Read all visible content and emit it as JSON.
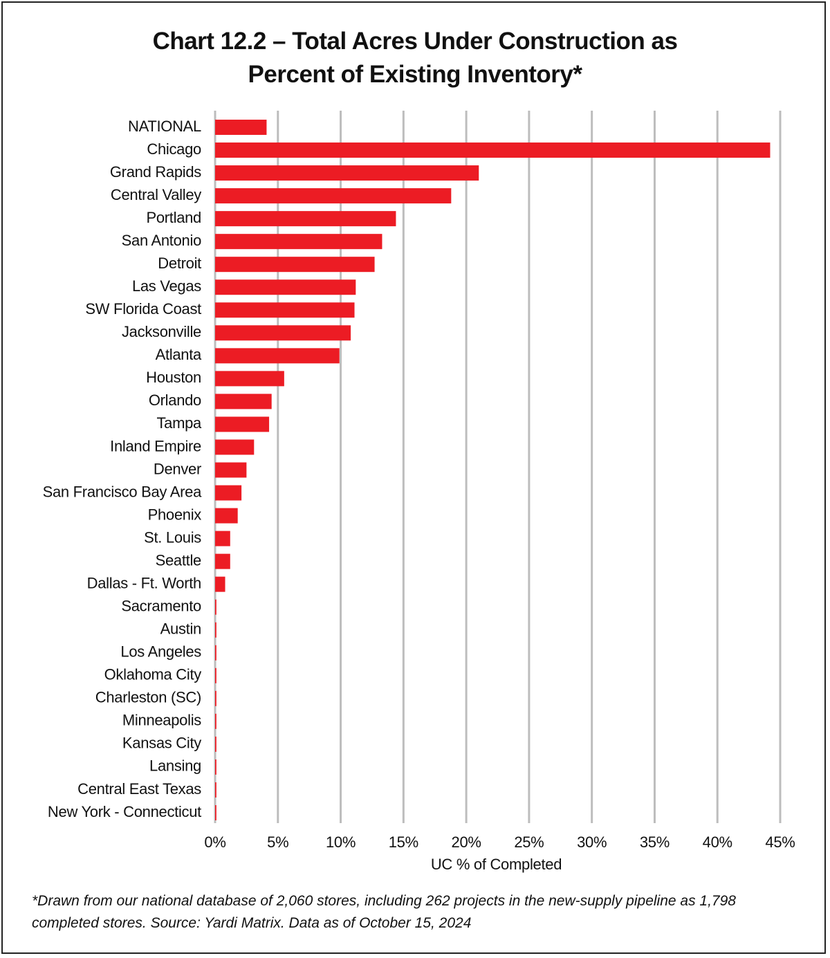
{
  "chart_data": {
    "type": "hbar",
    "title": "Chart 12.2 – Total Acres Under Construction as Percent of Existing Inventory*",
    "categories": [
      "NATIONAL",
      "Chicago",
      "Grand Rapids",
      "Central Valley",
      "Portland",
      "San Antonio",
      "Detroit",
      "Las Vegas",
      "SW Florida Coast",
      "Jacksonville",
      "Atlanta",
      "Houston",
      "Orlando",
      "Tampa",
      "Inland Empire",
      "Denver",
      "San Francisco Bay Area",
      "Phoenix",
      "St. Louis",
      "Seattle",
      "Dallas - Ft. Worth",
      "Sacramento",
      "Austin",
      "Los Angeles",
      "Oklahoma City",
      "Charleston (SC)",
      "Minneapolis",
      "Kansas City",
      "Lansing",
      "Central East Texas",
      "New York - Connecticut"
    ],
    "values": [
      4.1,
      44.2,
      21.0,
      18.8,
      14.4,
      13.3,
      12.7,
      11.2,
      11.1,
      10.8,
      9.9,
      5.5,
      4.5,
      4.3,
      3.1,
      2.5,
      2.1,
      1.8,
      1.2,
      1.2,
      0.8,
      0.1,
      0.1,
      0.1,
      0.1,
      0.1,
      0.1,
      0.1,
      0.1,
      0.1,
      0.1
    ],
    "color": "#ec1c24",
    "xlim": [
      0,
      45
    ],
    "xticks": [
      {
        "value": 0,
        "label": "0%"
      },
      {
        "value": 5,
        "label": "5%"
      },
      {
        "value": 10,
        "label": "10%"
      },
      {
        "value": 15,
        "label": "15%"
      },
      {
        "value": 20,
        "label": "20%"
      },
      {
        "value": 25,
        "label": "25%"
      },
      {
        "value": 30,
        "label": "30%"
      },
      {
        "value": 35,
        "label": "35%"
      },
      {
        "value": 40,
        "label": "40%"
      },
      {
        "value": 45,
        "label": "45%"
      }
    ],
    "x_label": "UC % of Completed",
    "grid": true,
    "footnote": "*Drawn from our national database of 2,060 stores, including 262 projects in the new-supply pipeline as 1,798 completed stores. Source: Yardi Matrix. Data as of October 15, 2024"
  }
}
